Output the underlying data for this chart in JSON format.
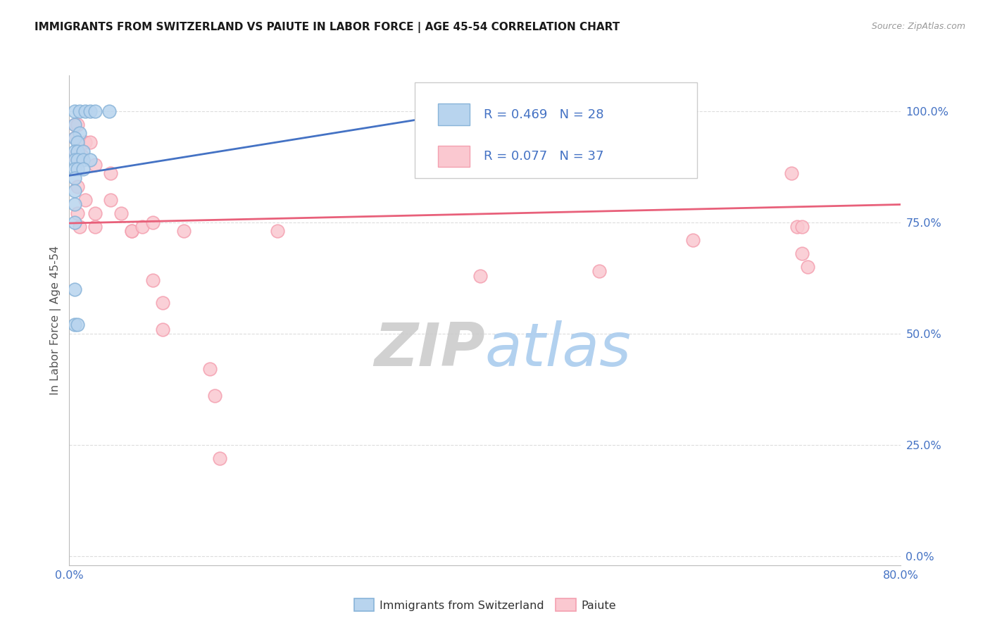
{
  "title": "IMMIGRANTS FROM SWITZERLAND VS PAIUTE IN LABOR FORCE | AGE 45-54 CORRELATION CHART",
  "source": "Source: ZipAtlas.com",
  "ylabel": "In Labor Force | Age 45-54",
  "ytick_labels": [
    "0.0%",
    "25.0%",
    "50.0%",
    "75.0%",
    "100.0%"
  ],
  "ytick_values": [
    0.0,
    0.25,
    0.5,
    0.75,
    1.0
  ],
  "xlim": [
    0.0,
    0.8
  ],
  "ylim": [
    -0.02,
    1.08
  ],
  "watermark_zip": "ZIP",
  "watermark_atlas": "atlas",
  "legend_r1_label": "R = 0.469",
  "legend_r1_n": "N = 28",
  "legend_r2_label": "R = 0.077",
  "legend_r2_n": "N = 37",
  "blue_color": "#89B4D9",
  "pink_color": "#F4A0B0",
  "blue_fill": "#B8D4EE",
  "pink_fill": "#FAC8D0",
  "blue_line_color": "#4472C4",
  "pink_line_color": "#E8607A",
  "title_color": "#1a1a1a",
  "axis_label_color": "#4472C4",
  "grid_color": "#DDDDDD",
  "blue_scatter": [
    [
      0.005,
      1.0
    ],
    [
      0.01,
      1.0
    ],
    [
      0.015,
      1.0
    ],
    [
      0.02,
      1.0
    ],
    [
      0.025,
      1.0
    ],
    [
      0.038,
      1.0
    ],
    [
      0.37,
      1.0
    ],
    [
      0.005,
      0.97
    ],
    [
      0.01,
      0.95
    ],
    [
      0.005,
      0.94
    ],
    [
      0.008,
      0.93
    ],
    [
      0.005,
      0.91
    ],
    [
      0.008,
      0.91
    ],
    [
      0.013,
      0.91
    ],
    [
      0.005,
      0.89
    ],
    [
      0.008,
      0.89
    ],
    [
      0.013,
      0.89
    ],
    [
      0.02,
      0.89
    ],
    [
      0.005,
      0.87
    ],
    [
      0.008,
      0.87
    ],
    [
      0.013,
      0.87
    ],
    [
      0.005,
      0.85
    ],
    [
      0.005,
      0.82
    ],
    [
      0.005,
      0.79
    ],
    [
      0.005,
      0.6
    ],
    [
      0.005,
      0.52
    ],
    [
      0.008,
      0.52
    ],
    [
      0.005,
      0.75
    ]
  ],
  "pink_scatter": [
    [
      0.005,
      0.97
    ],
    [
      0.008,
      0.97
    ],
    [
      0.005,
      0.94
    ],
    [
      0.015,
      0.93
    ],
    [
      0.02,
      0.93
    ],
    [
      0.005,
      0.9
    ],
    [
      0.012,
      0.9
    ],
    [
      0.025,
      0.88
    ],
    [
      0.04,
      0.86
    ],
    [
      0.008,
      0.83
    ],
    [
      0.015,
      0.8
    ],
    [
      0.04,
      0.8
    ],
    [
      0.008,
      0.77
    ],
    [
      0.025,
      0.77
    ],
    [
      0.05,
      0.77
    ],
    [
      0.01,
      0.74
    ],
    [
      0.025,
      0.74
    ],
    [
      0.06,
      0.73
    ],
    [
      0.06,
      0.73
    ],
    [
      0.07,
      0.74
    ],
    [
      0.08,
      0.75
    ],
    [
      0.11,
      0.73
    ],
    [
      0.2,
      0.73
    ],
    [
      0.395,
      0.63
    ],
    [
      0.51,
      0.64
    ],
    [
      0.6,
      0.71
    ],
    [
      0.695,
      0.86
    ],
    [
      0.7,
      0.74
    ],
    [
      0.705,
      0.74
    ],
    [
      0.705,
      0.68
    ],
    [
      0.71,
      0.65
    ],
    [
      0.08,
      0.62
    ],
    [
      0.09,
      0.57
    ],
    [
      0.09,
      0.51
    ],
    [
      0.135,
      0.42
    ],
    [
      0.14,
      0.36
    ],
    [
      0.145,
      0.22
    ]
  ],
  "blue_trendline_x": [
    0.0,
    0.4
  ],
  "blue_trendline_y": [
    0.855,
    1.005
  ],
  "pink_trendline_x": [
    0.0,
    0.8
  ],
  "pink_trendline_y": [
    0.748,
    0.79
  ],
  "bottom_legend_labels": [
    "Immigrants from Switzerland",
    "Paiute"
  ]
}
